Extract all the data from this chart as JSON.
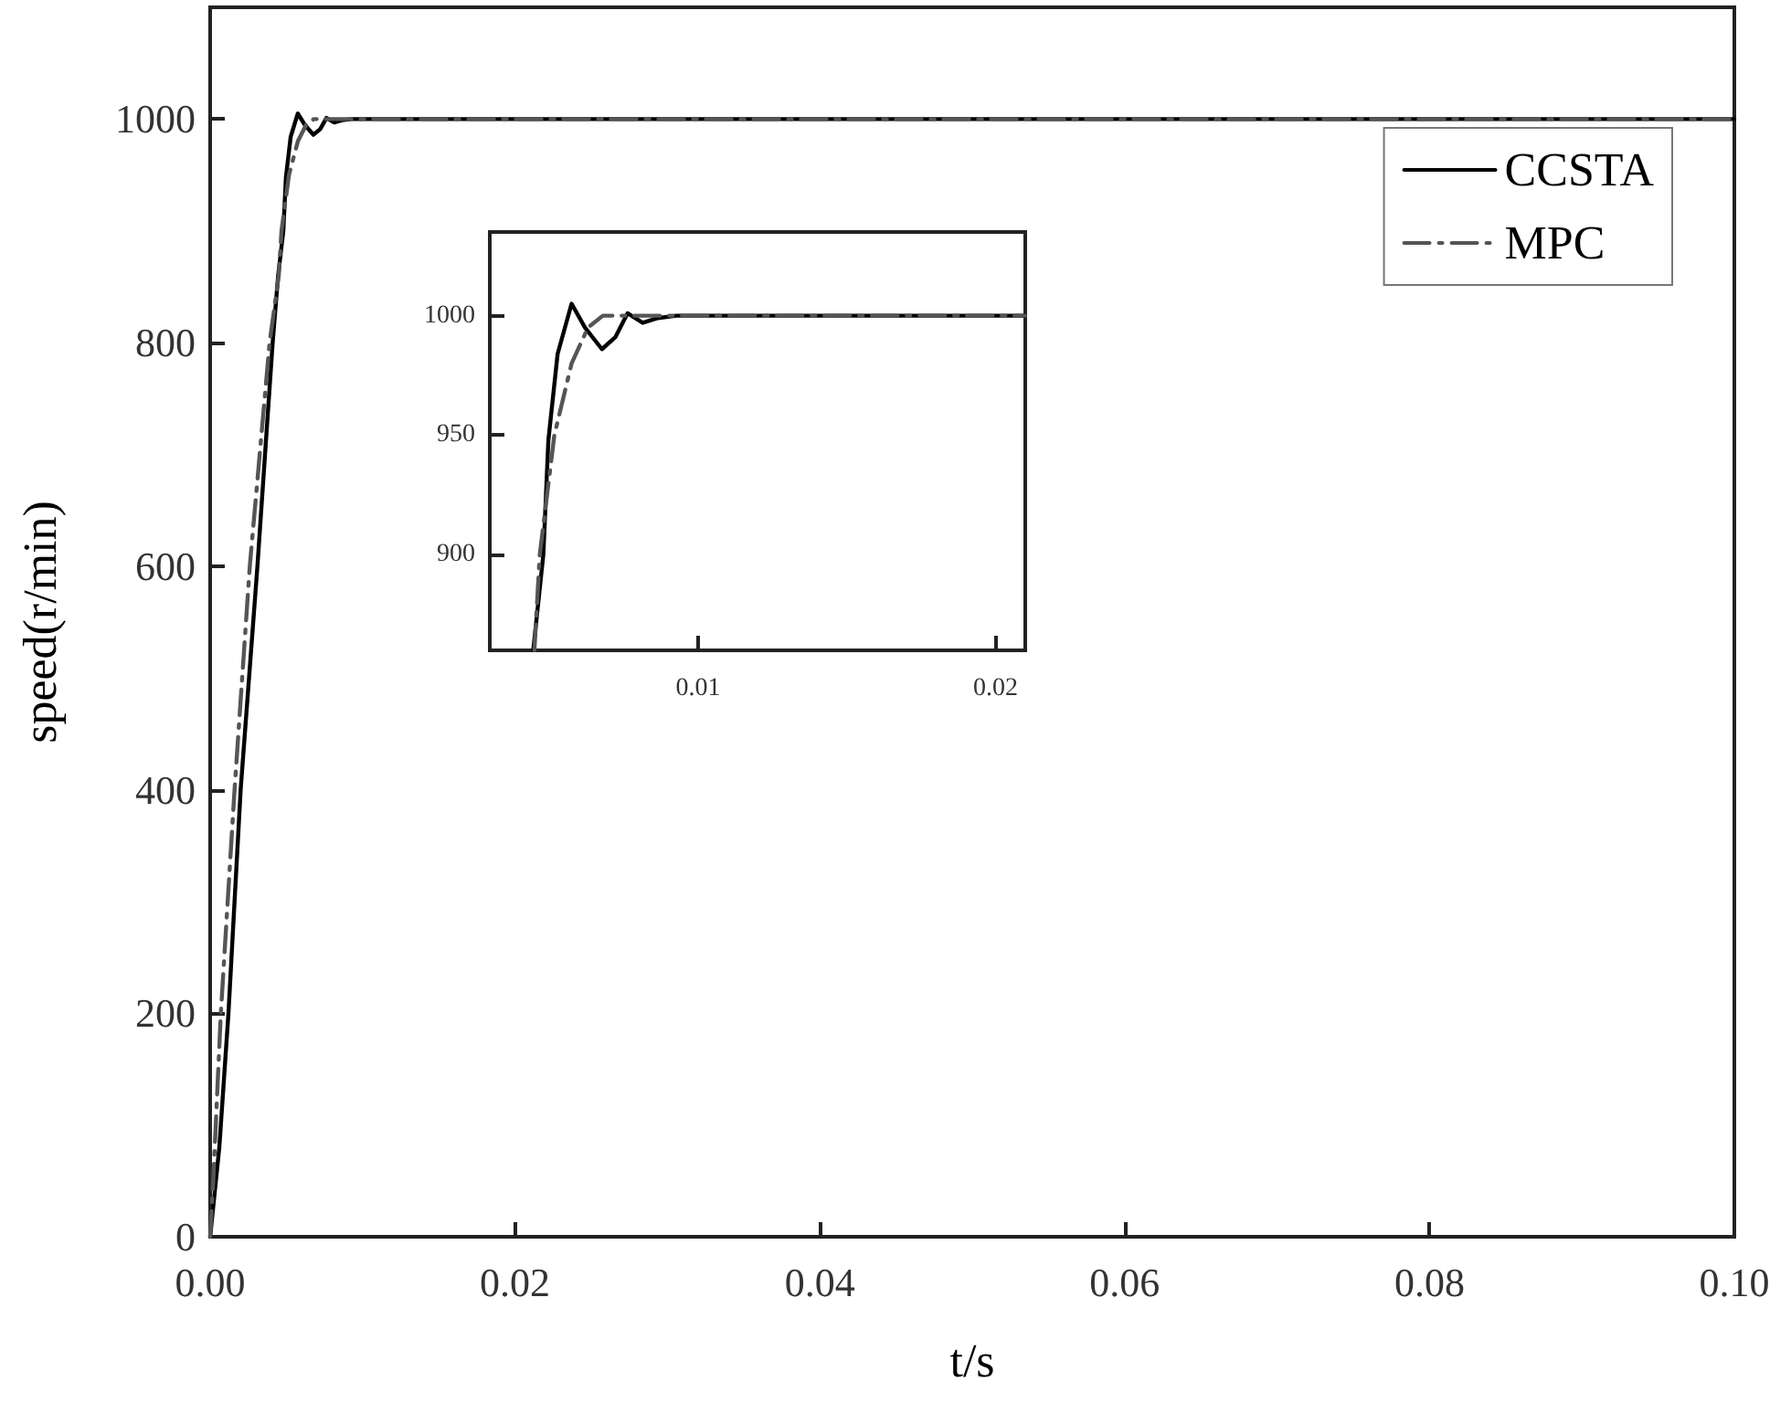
{
  "chart_data": [
    {
      "type": "line",
      "xlabel": "t/s",
      "ylabel": "speed(r/min)",
      "xlim": [
        0,
        0.1
      ],
      "ylim": [
        0,
        1100
      ],
      "xticks": [
        {
          "value": 0,
          "label": "0.00"
        },
        {
          "value": 0.02,
          "label": "0.02"
        },
        {
          "value": 0.04,
          "label": "0.04"
        },
        {
          "value": 0.06,
          "label": "0.06"
        },
        {
          "value": 0.08,
          "label": "0.08"
        },
        {
          "value": 0.1,
          "label": "0.10"
        }
      ],
      "yticks": [
        0,
        200,
        400,
        600,
        800,
        1000
      ],
      "legend": "top right",
      "grid": false,
      "series": [
        {
          "name": "CCSTA",
          "color": "#000000",
          "line_style": "solid",
          "x": [
            0,
            0.0006,
            0.0012,
            0.002,
            0.0031,
            0.0041,
            0.00446,
            0.0048,
            0.00497,
            0.00528,
            0.00575,
            0.0062,
            0.00677,
            0.00722,
            0.00763,
            0.00814,
            0.00865,
            0.00927,
            0.1
          ],
          "values": [
            0,
            80,
            200,
            400,
            600,
            800,
            860,
            900,
            948,
            984,
            1005,
            995,
            986,
            991,
            1001,
            997,
            999,
            1000,
            1000
          ]
        },
        {
          "name": "MPC",
          "color": "#555555",
          "line_style": "dashdot",
          "x": [
            0,
            0.0002,
            0.0007,
            0.0016,
            0.0026,
            0.0039,
            0.0045,
            0.00468,
            0.00517,
            0.00575,
            0.0063,
            0.0068,
            0.1
          ],
          "values": [
            0,
            50,
            200,
            400,
            600,
            800,
            860,
            900,
            950,
            980,
            995,
            1000,
            1000
          ]
        }
      ]
    },
    {
      "type": "line",
      "xlim": [
        0.003,
        0.021
      ],
      "ylim": [
        860,
        1035
      ],
      "xticks": [
        0.01,
        0.02
      ],
      "yticks": [
        900,
        950,
        1000
      ],
      "grid": false,
      "series": [
        {
          "color": "#000000",
          "line_style": "solid",
          "x": [
            0.00446,
            0.0048,
            0.00497,
            0.00528,
            0.00575,
            0.0062,
            0.00677,
            0.00722,
            0.00763,
            0.00814,
            0.00865,
            0.00927,
            0.021
          ],
          "values": [
            860,
            900,
            948,
            984,
            1005,
            995,
            986,
            991,
            1001,
            997,
            999,
            1000,
            1000
          ]
        },
        {
          "color": "#555555",
          "line_style": "dashdot",
          "x": [
            0.0045,
            0.00468,
            0.00517,
            0.00575,
            0.0063,
            0.0068,
            0.021
          ],
          "values": [
            860,
            900,
            950,
            980,
            995,
            1000,
            1000
          ]
        }
      ]
    }
  ]
}
